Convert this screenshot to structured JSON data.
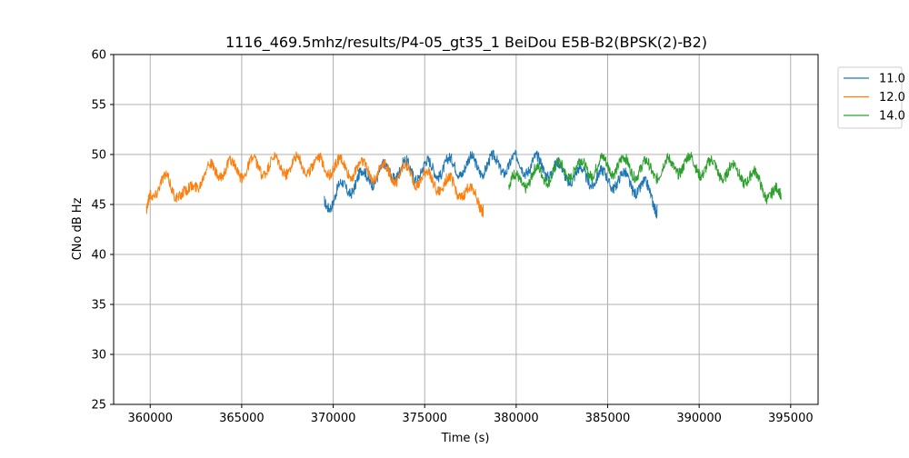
{
  "chart_data": {
    "type": "line",
    "title": "1116_469.5mhz/results/P4-05_gt35_1 BeiDou E5B-B2(BPSK(2)-B2)",
    "xlabel": "Time (s)",
    "ylabel": "CNo dB Hz",
    "xlim": [
      358000,
      396500
    ],
    "ylim": [
      25,
      60
    ],
    "xticks": [
      360000,
      365000,
      370000,
      375000,
      380000,
      385000,
      390000,
      395000
    ],
    "yticks": [
      25,
      30,
      35,
      40,
      45,
      50,
      55,
      60
    ],
    "grid": true,
    "legend_position": "outside-top-right",
    "series": [
      {
        "name": "11.0",
        "color": "#1f77b4",
        "x": [
          369500,
          370000,
          370500,
          371000,
          371500,
          372000,
          372500,
          373000,
          373500,
          374000,
          374500,
          375000,
          375500,
          376000,
          376500,
          377000,
          377500,
          378000,
          378500,
          379000,
          379500,
          380000,
          380500,
          381000,
          381500,
          382000,
          382500,
          383000,
          383500,
          384000,
          384500,
          385000,
          385500,
          386000,
          386500,
          387000,
          387500,
          387700
        ],
        "y": [
          45.5,
          45.5,
          46.5,
          47.0,
          47.5,
          47.8,
          48.0,
          48.3,
          48.5,
          48.5,
          48.3,
          48.5,
          48.6,
          48.7,
          48.8,
          48.8,
          48.9,
          48.9,
          49.0,
          49.0,
          49.0,
          49.0,
          49.0,
          49.0,
          48.8,
          48.5,
          48.2,
          48.0,
          47.8,
          47.8,
          47.6,
          47.5,
          47.5,
          47.3,
          47.0,
          46.5,
          45.5,
          45.0
        ]
      },
      {
        "name": "12.0",
        "color": "#ff7f0e",
        "x": [
          359800,
          360000,
          360500,
          361000,
          361500,
          362000,
          362500,
          363000,
          363500,
          364000,
          364500,
          365000,
          365500,
          366000,
          366500,
          367000,
          367500,
          368000,
          368500,
          369000,
          369500,
          370000,
          370500,
          371000,
          371500,
          372000,
          372500,
          373000,
          373500,
          374000,
          374500,
          375000,
          375500,
          376000,
          376500,
          377000,
          377500,
          378000,
          378200
        ],
        "y": [
          44.0,
          46.5,
          47.0,
          47.0,
          46.5,
          45.5,
          47.5,
          48.0,
          48.5,
          48.5,
          48.5,
          48.5,
          48.7,
          48.8,
          48.8,
          48.8,
          48.9,
          48.9,
          49.0,
          49.0,
          48.9,
          48.8,
          48.6,
          48.6,
          48.5,
          48.5,
          48.3,
          48.2,
          48.0,
          48.0,
          47.8,
          47.5,
          47.3,
          47.0,
          46.8,
          46.5,
          46.0,
          45.5,
          45.0
        ]
      },
      {
        "name": "14.0",
        "color": "#2ca02c",
        "x": [
          379600,
          380000,
          380500,
          381000,
          381500,
          382000,
          382500,
          383000,
          383500,
          384000,
          384500,
          385000,
          385500,
          386000,
          386500,
          387000,
          387500,
          388000,
          388500,
          389000,
          389500,
          390000,
          390500,
          391000,
          391500,
          392000,
          392500,
          393000,
          393500,
          394000,
          394500
        ],
        "y": [
          47.0,
          47.2,
          47.5,
          47.8,
          48.0,
          48.2,
          48.4,
          48.5,
          48.6,
          48.7,
          48.8,
          48.9,
          49.0,
          48.8,
          48.6,
          48.5,
          48.4,
          48.6,
          48.8,
          49.0,
          49.0,
          48.8,
          48.6,
          48.5,
          48.3,
          48.2,
          48.0,
          47.5,
          46.8,
          46.0,
          45.5
        ]
      }
    ]
  }
}
